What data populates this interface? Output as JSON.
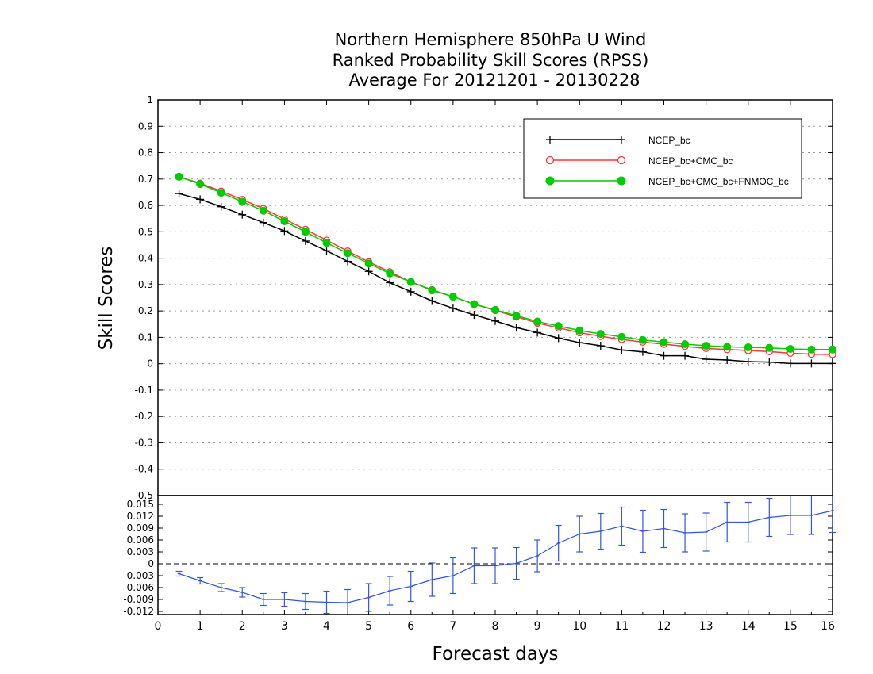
{
  "title_lines": [
    "Northern Hemisphere 850hPa U Wind",
    "Ranked Probability Skill Scores (RPSS)",
    "Average For 20121201 - 20130228"
  ],
  "chart_data": [
    {
      "type": "line",
      "xlabel": "",
      "ylabel": "Skill Scores",
      "xlim": [
        0,
        16
      ],
      "ylim": [
        -0.5,
        1
      ],
      "yticks": [
        "1",
        "0.9",
        "0.8",
        "0.7",
        "0.6",
        "0.5",
        "0.4",
        "0.3",
        "0.2",
        "0.1",
        "0",
        "-0.1",
        "-0.2",
        "-0.3",
        "-0.4",
        "-0.5"
      ],
      "grid": true,
      "legend_position": "top-right",
      "x": [
        0.5,
        1,
        1.5,
        2,
        2.5,
        3,
        3.5,
        4,
        4.5,
        5,
        5.5,
        6,
        6.5,
        7,
        7.5,
        8,
        8.5,
        9,
        9.5,
        10,
        10.5,
        11,
        11.5,
        12,
        12.5,
        13,
        13.5,
        14,
        14.5,
        15,
        15.5,
        16
      ],
      "series": [
        {
          "name": "NCEP_bc",
          "color": "#000000",
          "marker": "plus",
          "values": [
            0.645,
            0.623,
            0.595,
            0.565,
            0.535,
            0.503,
            0.465,
            0.428,
            0.388,
            0.35,
            0.307,
            0.273,
            0.238,
            0.21,
            0.185,
            0.162,
            0.137,
            0.118,
            0.097,
            0.08,
            0.068,
            0.052,
            0.045,
            0.03,
            0.03,
            0.017,
            0.014,
            0.008,
            0.006,
            0.001,
            0.001,
            0.001
          ]
        },
        {
          "name": "NCEP_bc+CMC_bc",
          "color": "#ff3333",
          "marker": "open-circle",
          "values": [
            0.708,
            0.684,
            0.654,
            0.622,
            0.588,
            0.548,
            0.509,
            0.468,
            0.427,
            0.386,
            0.348,
            0.31,
            0.28,
            0.254,
            0.226,
            0.202,
            0.178,
            0.154,
            0.136,
            0.118,
            0.104,
            0.092,
            0.082,
            0.074,
            0.066,
            0.058,
            0.054,
            0.05,
            0.046,
            0.04,
            0.036,
            0.035
          ]
        },
        {
          "name": "NCEP_bc+CMC_bc+FNMOC_bc",
          "color": "#00cc00",
          "marker": "filled-circle",
          "values": [
            0.709,
            0.681,
            0.648,
            0.614,
            0.58,
            0.54,
            0.5,
            0.458,
            0.419,
            0.38,
            0.342,
            0.31,
            0.278,
            0.254,
            0.226,
            0.204,
            0.182,
            0.16,
            0.143,
            0.126,
            0.113,
            0.102,
            0.09,
            0.082,
            0.074,
            0.068,
            0.064,
            0.062,
            0.06,
            0.056,
            0.054,
            0.054
          ]
        }
      ]
    },
    {
      "type": "line",
      "xlabel": "Forecast days",
      "ylabel": "",
      "xlim": [
        0,
        16
      ],
      "ylim": [
        -0.0128,
        0.0172
      ],
      "yticks": [
        "0.015",
        "0.012",
        "0.009",
        "0.006",
        "0.003",
        "0",
        "-0.003",
        "-0.006",
        "-0.009",
        "-0.012"
      ],
      "xticks": [
        "0",
        "1",
        "2",
        "3",
        "4",
        "5",
        "6",
        "7",
        "8",
        "9",
        "10",
        "11",
        "12",
        "13",
        "14",
        "15",
        "16"
      ],
      "reference_line": 0,
      "x": [
        0.5,
        1,
        1.5,
        2,
        2.5,
        3,
        3.5,
        4,
        4.5,
        5,
        5.5,
        6,
        6.5,
        7,
        7.5,
        8,
        8.5,
        9,
        9.5,
        10,
        10.5,
        11,
        11.5,
        12,
        12.5,
        13,
        13.5,
        14,
        14.5,
        15,
        15.5,
        16
      ],
      "series": [
        {
          "color": "#3355dd",
          "marker": "error-bar",
          "values": [
            -0.0025,
            -0.0043,
            -0.006,
            -0.0072,
            -0.009,
            -0.009,
            -0.0095,
            -0.0097,
            -0.0098,
            -0.0085,
            -0.0068,
            -0.0057,
            -0.004,
            -0.003,
            -0.0005,
            -0.0005,
            0.0001,
            0.002,
            0.0052,
            0.0075,
            0.0082,
            0.0095,
            0.0082,
            0.0089,
            0.0078,
            0.008,
            0.0105,
            0.0105,
            0.0117,
            0.0122,
            0.0122,
            0.0134
          ],
          "error": [
            0.0006,
            0.0008,
            0.001,
            0.0012,
            0.0015,
            0.0017,
            0.002,
            0.0028,
            0.0033,
            0.0035,
            0.0036,
            0.0038,
            0.0042,
            0.0045,
            0.0045,
            0.0045,
            0.004,
            0.004,
            0.0045,
            0.0045,
            0.0045,
            0.0048,
            0.0053,
            0.0048,
            0.0048,
            0.0048,
            0.005,
            0.005,
            0.0048,
            0.0048,
            0.0048,
            0.0055
          ]
        }
      ]
    }
  ]
}
